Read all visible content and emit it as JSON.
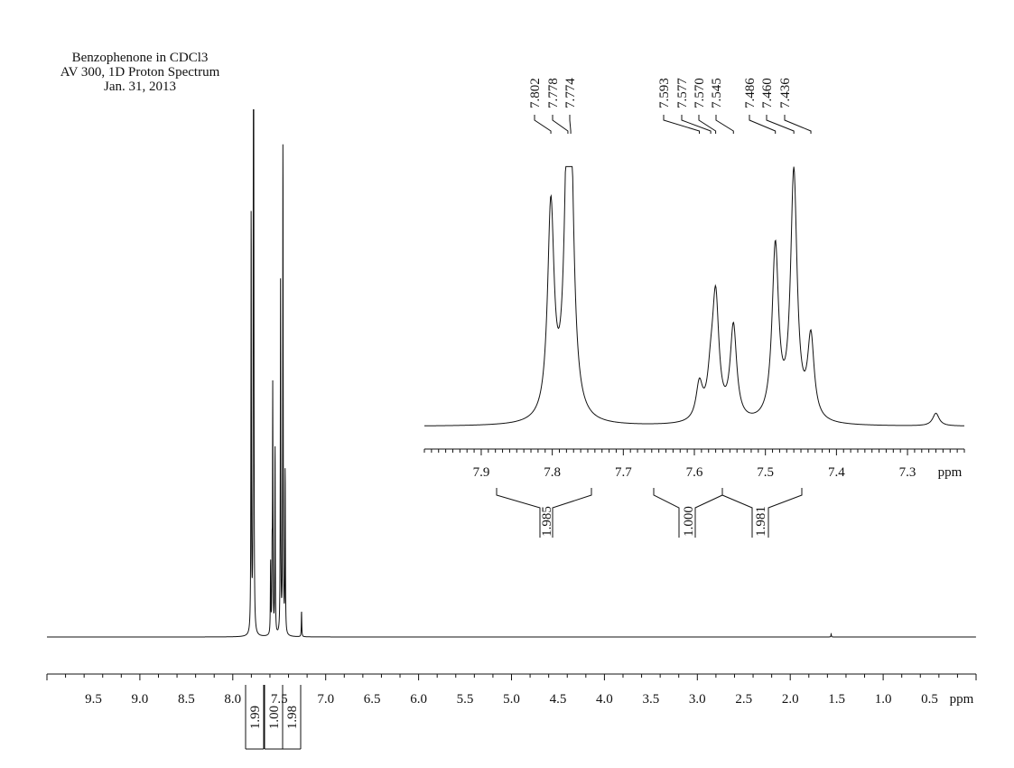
{
  "title_lines": [
    "Benzophenone in CDCl3",
    "AV 300, 1D Proton Spectrum",
    "Jan. 31, 2013"
  ],
  "chart_data": [
    {
      "type": "line",
      "name": "full",
      "xlabel": "ppm",
      "xlim": [
        10.0,
        0.0
      ],
      "x_ticks": [
        "9.5",
        "9.0",
        "8.5",
        "8.0",
        "7.5",
        "7.0",
        "6.5",
        "6.0",
        "5.5",
        "5.0",
        "4.5",
        "4.0",
        "3.5",
        "3.0",
        "2.5",
        "2.0",
        "1.5",
        "1.0",
        "0.5"
      ],
      "peaks": [
        {
          "ppm": 7.802,
          "height": 0.83
        },
        {
          "ppm": 7.778,
          "height": 1.0
        },
        {
          "ppm": 7.774,
          "height": 0.7
        },
        {
          "ppm": 7.593,
          "height": 0.14
        },
        {
          "ppm": 7.577,
          "height": 0.13
        },
        {
          "ppm": 7.57,
          "height": 0.47
        },
        {
          "ppm": 7.545,
          "height": 0.37
        },
        {
          "ppm": 7.486,
          "height": 0.68
        },
        {
          "ppm": 7.46,
          "height": 0.97
        },
        {
          "ppm": 7.436,
          "height": 0.32
        },
        {
          "ppm": 7.26,
          "height": 0.05
        },
        {
          "ppm": 1.56,
          "height": 0.006
        }
      ],
      "integrals": [
        {
          "value": "1.99",
          "from": 7.86,
          "to": 7.72
        },
        {
          "value": "1.00",
          "from": 7.62,
          "to": 7.53
        },
        {
          "value": "1.98",
          "from": 7.51,
          "to": 7.4
        }
      ]
    },
    {
      "type": "line",
      "name": "inset",
      "xlabel": "ppm",
      "xlim": [
        7.98,
        7.22
      ],
      "x_ticks": [
        "7.9",
        "7.8",
        "7.7",
        "7.6",
        "7.5",
        "7.4",
        "7.3"
      ],
      "peak_labels": [
        "7.802",
        "7.778",
        "7.774",
        "7.593",
        "7.577",
        "7.570",
        "7.545",
        "7.486",
        "7.460",
        "7.436"
      ],
      "integrals": [
        {
          "value": "1.985",
          "from": 7.86,
          "to": 7.72
        },
        {
          "value": "1.000",
          "from": 7.62,
          "to": 7.53
        },
        {
          "value": "1.981",
          "from": 7.51,
          "to": 7.4
        }
      ]
    }
  ]
}
